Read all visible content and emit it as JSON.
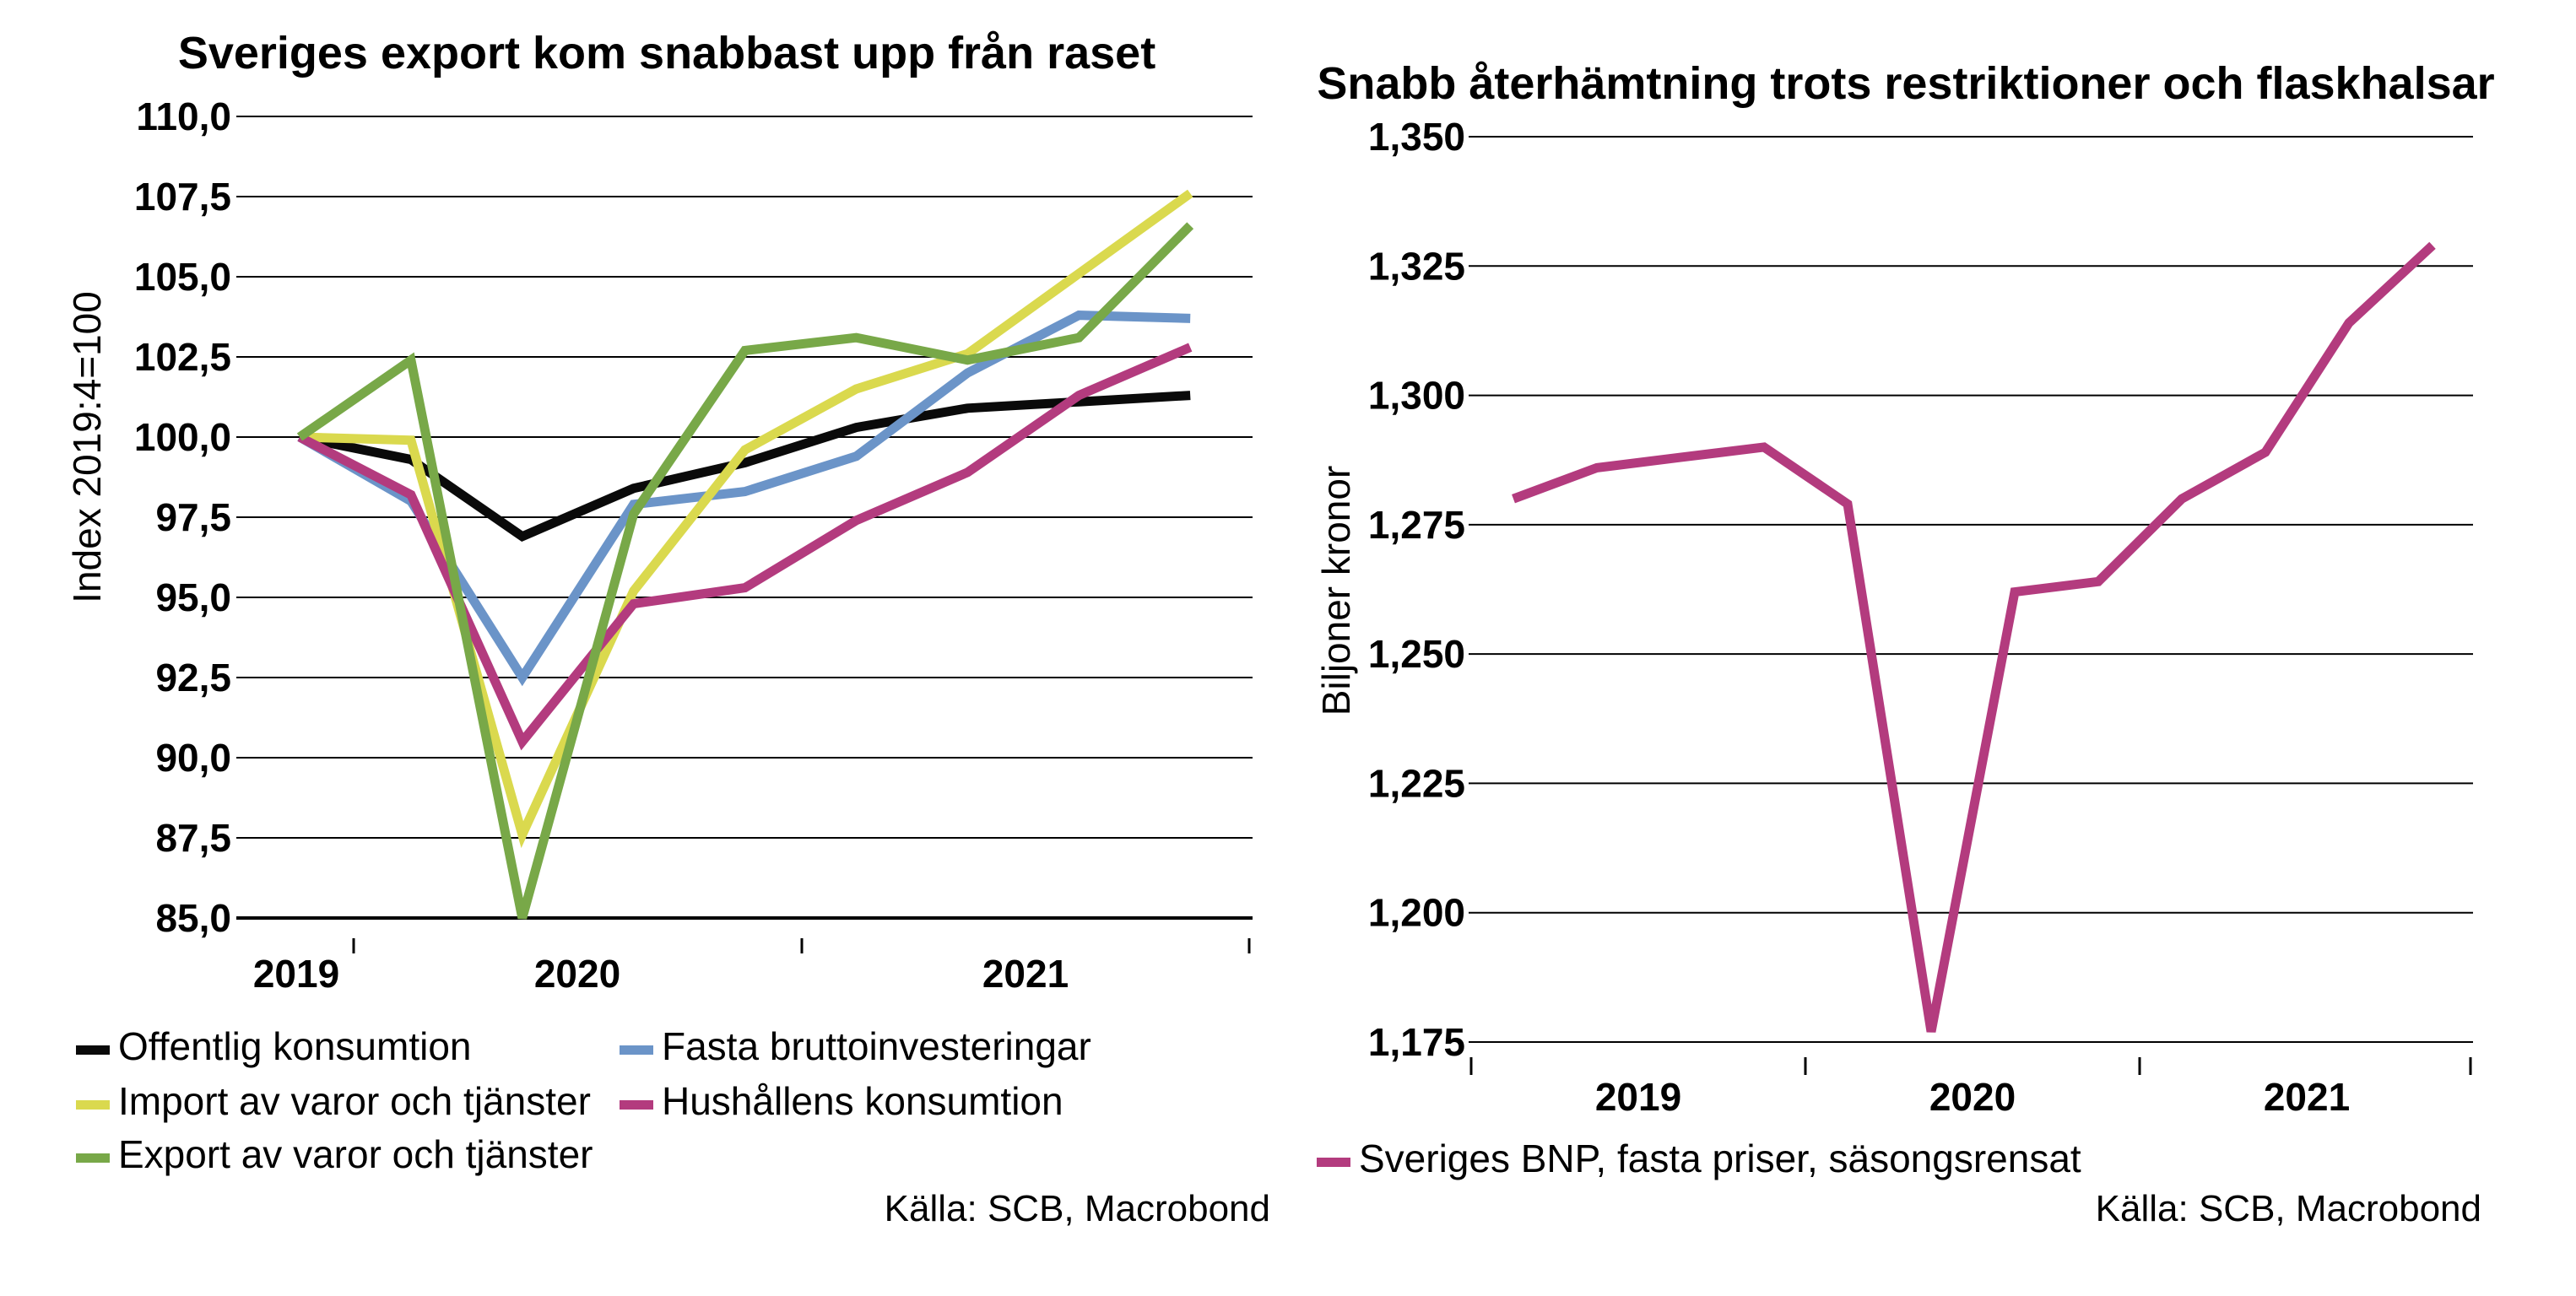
{
  "chart_data": [
    {
      "type": "line",
      "title": "Sveriges export kom snabbast upp från raset",
      "ylabel": "Index 2019:4=100",
      "xlabel": "",
      "source": "Källa: SCB, Macrobond",
      "x": [
        "2019Q4",
        "2020Q1",
        "2020Q2",
        "2020Q3",
        "2020Q4",
        "2021Q1",
        "2021Q2",
        "2021Q3",
        "2021Q4"
      ],
      "ylim": [
        85,
        110
      ],
      "ytick_step": 2.5,
      "ytick_labels": [
        "110,0",
        "107,5",
        "105,0",
        "102,5",
        "100,0",
        "97,5",
        "95,0",
        "92,5",
        "90,0",
        "87,5",
        "85,0"
      ],
      "xtick_year_labels": [
        "2019",
        "2020",
        "2021"
      ],
      "grid": "horizontal",
      "legend_position": "bottom-left-two-columns",
      "series": [
        {
          "name": "Offentlig konsumtion",
          "color": "#0a0a0a",
          "values": [
            100,
            99.3,
            96.9,
            98.4,
            99.2,
            100.3,
            100.9,
            101.1,
            101.3
          ]
        },
        {
          "name": "Fasta bruttoinvesteringar",
          "color": "#6b94c8",
          "values": [
            100,
            98.0,
            92.5,
            97.9,
            98.3,
            99.4,
            102.0,
            103.8,
            103.7
          ]
        },
        {
          "name": "Import av varor och tjänster",
          "color": "#dad94e",
          "values": [
            100,
            99.9,
            87.6,
            95.2,
            99.6,
            101.5,
            102.6,
            105.1,
            107.6
          ]
        },
        {
          "name": "Hushållens konsumtion",
          "color": "#b33b7e",
          "values": [
            100,
            98.2,
            90.5,
            94.8,
            95.3,
            97.4,
            98.9,
            101.3,
            102.8
          ]
        },
        {
          "name": "Export av varor och tjänster",
          "color": "#78a848",
          "values": [
            100,
            102.4,
            85.0,
            97.6,
            102.7,
            103.1,
            102.4,
            103.1,
            106.6
          ]
        }
      ]
    },
    {
      "type": "line",
      "title": "Snabb återhämtning trots restriktioner och flaskhalsar",
      "ylabel": "Biljoner kronor",
      "xlabel": "",
      "source": "Källa: SCB, Macrobond",
      "x": [
        "2019Q1",
        "2019Q2",
        "2019Q3",
        "2019Q4",
        "2020Q1",
        "2020Q2",
        "2020Q3",
        "2020Q4",
        "2021Q1",
        "2021Q2",
        "2021Q3",
        "2021Q4"
      ],
      "ylim": [
        1175,
        1350
      ],
      "ytick_step": 25,
      "ytick_labels": [
        "1,350",
        "1,325",
        "1,300",
        "1,275",
        "1,250",
        "1,225",
        "1,200",
        "1,175"
      ],
      "xtick_year_labels": [
        "2019",
        "2020",
        "2021"
      ],
      "grid": "horizontal",
      "legend_position": "bottom-left",
      "series": [
        {
          "name": "Sveriges BNP, fasta priser, säsongsrensat",
          "color": "#b33b7e",
          "values": [
            1280,
            1286,
            1288,
            1290,
            1279,
            1177,
            1262,
            1264,
            1280,
            1289,
            1314,
            1329
          ]
        }
      ]
    }
  ]
}
